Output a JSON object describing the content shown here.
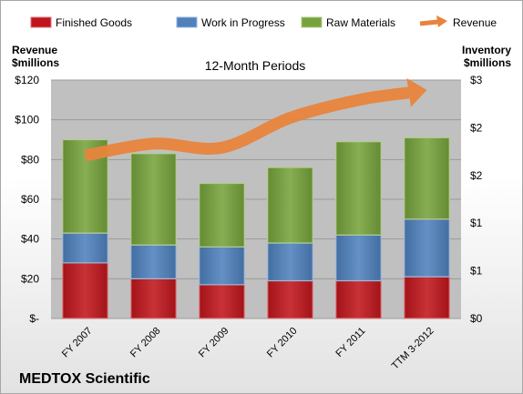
{
  "chart_data": {
    "type": "bar",
    "stacked": true,
    "subtitle": "12-Month Periods",
    "categories": [
      "FY 2007",
      "FY 2008",
      "FY 2009",
      "FY 2010",
      "FY 2011",
      "TTM 3-2012"
    ],
    "series": [
      {
        "name": "Finished Goods",
        "color": "#c0161c",
        "values": [
          28,
          20,
          17,
          19,
          19,
          21
        ]
      },
      {
        "name": "Work in Progress",
        "color": "#4f81bd",
        "values": [
          15,
          17,
          19,
          19,
          23,
          29
        ]
      },
      {
        "name": "Raw Materials",
        "color": "#77a33c",
        "values": [
          47,
          46,
          32,
          38,
          47,
          41
        ]
      }
    ],
    "line_series": {
      "name": "Revenue",
      "color": "#e8843c",
      "values": [
        82,
        88,
        86,
        101,
        110,
        115
      ]
    },
    "legend": {
      "position": "top"
    },
    "left_axis": {
      "label_line1": "Revenue",
      "label_line2": "$millions",
      "ylim": [
        0,
        120
      ],
      "ticks": [
        0,
        20,
        40,
        60,
        80,
        100,
        120
      ],
      "tick_labels": [
        "$-",
        "$20",
        "$40",
        "$60",
        "$80",
        "$100",
        "$120"
      ]
    },
    "right_axis": {
      "label_line1": "Inventory",
      "label_line2": "$millions",
      "tick_labels": [
        "$0",
        "$1",
        "$1",
        "$2",
        "$2",
        "$3"
      ]
    },
    "plot_background": "#c0c0c0",
    "grid": true
  },
  "footer": {
    "company": "MEDTOX Scientific"
  }
}
